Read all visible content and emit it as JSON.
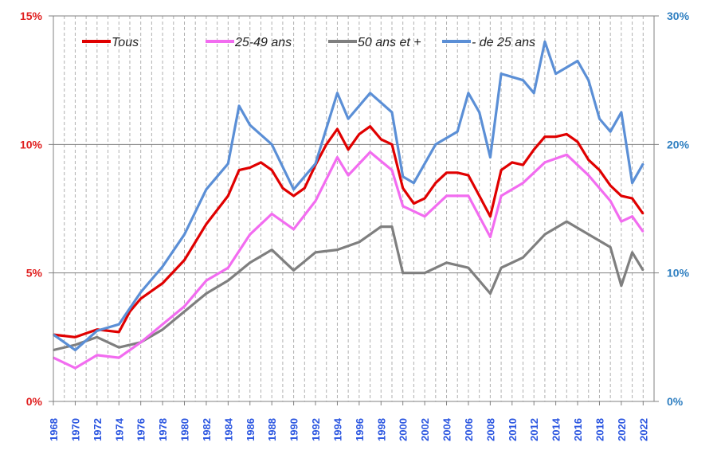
{
  "chart_data": {
    "type": "line",
    "title": "",
    "xlabel": "",
    "ylabel": "",
    "x_range": [
      1968,
      2023
    ],
    "ylim_left": [
      0,
      15
    ],
    "ylim_right": [
      0,
      30
    ],
    "left_ticks": [
      "0%",
      "5%",
      "10%",
      "15%"
    ],
    "right_ticks": [
      "0%",
      "10%",
      "20%",
      "30%"
    ],
    "x_ticks": [
      "1968",
      "1970",
      "1972",
      "1974",
      "1976",
      "1978",
      "1980",
      "1982",
      "1984",
      "1986",
      "1988",
      "1990",
      "1992",
      "1994",
      "1996",
      "1998",
      "2000",
      "2002",
      "2004",
      "2006",
      "2008",
      "2010",
      "2012",
      "2014",
      "2016",
      "2018",
      "2020",
      "2022"
    ],
    "grid": true,
    "legend_position": "top-left",
    "series": [
      {
        "name": "Tous",
        "color": "#e00000",
        "axis": "left",
        "x": [
          1968,
          1970,
          1972,
          1974,
          1975,
          1976,
          1978,
          1980,
          1982,
          1984,
          1985,
          1986,
          1987,
          1988,
          1989,
          1990,
          1991,
          1992,
          1993,
          1994,
          1995,
          1996,
          1997,
          1998,
          1999,
          2000,
          2001,
          2002,
          2003,
          2004,
          2005,
          2006,
          2007,
          2008,
          2009,
          2010,
          2011,
          2012,
          2013,
          2014,
          2015,
          2016,
          2017,
          2018,
          2019,
          2020,
          2021,
          2022
        ],
        "y": [
          2.6,
          2.5,
          2.8,
          2.7,
          3.5,
          4.0,
          4.6,
          5.5,
          6.9,
          8.0,
          9.0,
          9.1,
          9.3,
          9.0,
          8.3,
          8.0,
          8.3,
          9.2,
          10.0,
          10.6,
          9.8,
          10.4,
          10.7,
          10.2,
          10.0,
          8.3,
          7.7,
          7.9,
          8.5,
          8.9,
          8.9,
          8.8,
          8.0,
          7.2,
          9.0,
          9.3,
          9.2,
          9.8,
          10.3,
          10.3,
          10.4,
          10.1,
          9.4,
          9.0,
          8.4,
          8.0,
          7.9,
          7.3
        ]
      },
      {
        "name": "25-49 ans",
        "color": "#f26cf0",
        "axis": "left",
        "x": [
          1968,
          1970,
          1972,
          1974,
          1976,
          1978,
          1980,
          1982,
          1984,
          1986,
          1988,
          1990,
          1992,
          1994,
          1995,
          1997,
          1999,
          2000,
          2002,
          2004,
          2006,
          2008,
          2009,
          2011,
          2013,
          2015,
          2017,
          2019,
          2020,
          2021,
          2022
        ],
        "y": [
          1.7,
          1.3,
          1.8,
          1.7,
          2.3,
          3.0,
          3.7,
          4.7,
          5.2,
          6.5,
          7.3,
          6.7,
          7.8,
          9.5,
          8.8,
          9.7,
          9.0,
          7.6,
          7.2,
          8.0,
          8.0,
          6.4,
          8.0,
          8.5,
          9.3,
          9.6,
          8.8,
          7.8,
          7.0,
          7.2,
          6.6
        ]
      },
      {
        "name": "50 ans et +",
        "color": "#7f7f7f",
        "axis": "left",
        "x": [
          1968,
          1970,
          1972,
          1974,
          1976,
          1978,
          1980,
          1982,
          1984,
          1986,
          1988,
          1990,
          1992,
          1994,
          1996,
          1998,
          1999,
          2000,
          2002,
          2004,
          2006,
          2008,
          2009,
          2011,
          2013,
          2015,
          2017,
          2019,
          2020,
          2021,
          2022
        ],
        "y": [
          2.0,
          2.2,
          2.5,
          2.1,
          2.3,
          2.8,
          3.5,
          4.2,
          4.7,
          5.4,
          5.9,
          5.1,
          5.8,
          5.9,
          6.2,
          6.8,
          6.8,
          5.0,
          5.0,
          5.4,
          5.2,
          4.2,
          5.2,
          5.6,
          6.5,
          7.0,
          6.5,
          6.0,
          4.5,
          5.8,
          5.1
        ]
      },
      {
        "name": "- de 25 ans",
        "color": "#5b8fd6",
        "axis": "right",
        "x": [
          1968,
          1970,
          1972,
          1974,
          1976,
          1978,
          1980,
          1982,
          1984,
          1985,
          1986,
          1988,
          1990,
          1992,
          1994,
          1995,
          1997,
          1999,
          2000,
          2001,
          2003,
          2005,
          2006,
          2007,
          2008,
          2009,
          2011,
          2012,
          2013,
          2014,
          2016,
          2017,
          2018,
          2019,
          2020,
          2021,
          2022
        ],
        "y": [
          5.2,
          4.0,
          5.5,
          6.0,
          8.5,
          10.5,
          13.0,
          16.5,
          18.5,
          23.0,
          21.5,
          20.0,
          16.5,
          18.5,
          24.0,
          22.0,
          24.0,
          22.5,
          17.5,
          17.0,
          20.0,
          21.0,
          24.0,
          22.5,
          19.0,
          25.5,
          25.0,
          24.0,
          28.0,
          25.5,
          26.5,
          25.0,
          22.0,
          21.0,
          22.5,
          17.0,
          18.5
        ]
      }
    ]
  }
}
